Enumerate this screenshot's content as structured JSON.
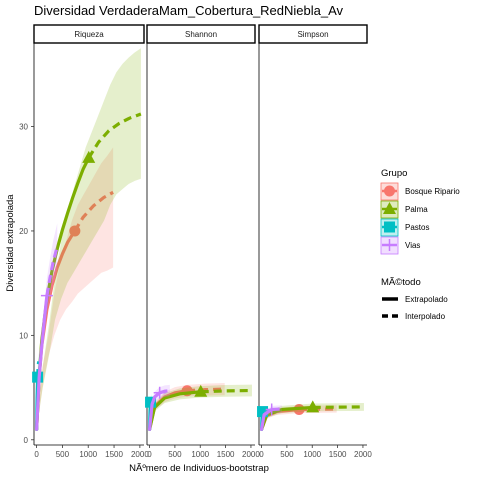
{
  "chart_data": {
    "type": "line",
    "title": "Diversidad VerdaderaMam_Cobertura_RedNiebla_Av",
    "xlabel": "NÃºmero de Individuos-bootstrap",
    "ylabel": "Diversidad extrapolada",
    "ylim": [
      -0.5,
      38
    ],
    "yticks": [
      0,
      10,
      20,
      30
    ],
    "xlim": [
      -50,
      2080
    ],
    "xticks": [
      0,
      500,
      1000,
      1500,
      2000
    ],
    "grid": false,
    "legend_position": "right",
    "facets": [
      "Riqueza",
      "Shannon",
      "Simpson"
    ],
    "legend_grupo": {
      "title": "Grupo",
      "entries": [
        {
          "name": "Bosque Ripario",
          "color": "#F8766D",
          "shape": "circle"
        },
        {
          "name": "Palma",
          "color": "#7CAE00",
          "shape": "triangle"
        },
        {
          "name": "Pastos",
          "color": "#00BFC4",
          "shape": "square"
        },
        {
          "name": "Vias",
          "color": "#C77CFF",
          "shape": "plus"
        }
      ]
    },
    "legend_metodo": {
      "title": "MÃ©todo",
      "entries": [
        {
          "name": "Extrapolado",
          "linetype": "solid"
        },
        {
          "name": "Interpolado",
          "linetype": "dashed"
        }
      ]
    },
    "panels": [
      {
        "facet": "Riqueza",
        "series": [
          {
            "name": "Bosque Ripario",
            "color": "#F8766D",
            "interp": {
              "x": [
                1,
                50,
                100,
                200,
                300,
                400,
                500,
                600,
                700,
                741
              ],
              "y": [
                1,
                6,
                9,
                12.5,
                14.8,
                16.5,
                17.8,
                18.9,
                19.7,
                20
              ]
            },
            "extrap": {
              "x": [
                741,
                900,
                1100,
                1300,
                1482
              ],
              "y": [
                20,
                21.3,
                22.4,
                23.2,
                23.7
              ]
            },
            "ci_lower": [
              1,
              5,
              8,
              10,
              11.5,
              12.5,
              13.2,
              14,
              14.5,
              15,
              15.5,
              16,
              16.2,
              16.5
            ],
            "ci_upper": [
              1,
              7,
              10,
              14,
              17,
              19,
              21,
              22.5,
              23.5,
              24.5,
              25.5,
              26.5,
              27.2,
              28
            ],
            "point": {
              "x": 741,
              "y": 20
            }
          },
          {
            "name": "Palma",
            "color": "#7CAE00",
            "interp": {
              "x": [
                1,
                50,
                100,
                200,
                300,
                400,
                500,
                600,
                700,
                800,
                900,
                1010
              ],
              "y": [
                1,
                6,
                9.5,
                13.5,
                16.2,
                18.3,
                20.1,
                21.7,
                23.2,
                24.6,
                25.9,
                27
              ]
            },
            "extrap": {
              "x": [
                1010,
                1200,
                1400,
                1600,
                1800,
                2020
              ],
              "y": [
                27,
                28.5,
                29.6,
                30.3,
                30.8,
                31.2
              ]
            },
            "ci_lower": [
              1,
              5,
              8,
              11.5,
              13.5,
              15,
              16,
              17,
              18,
              19,
              20,
              21,
              22.5,
              23.5,
              24,
              24.5,
              24.8,
              25
            ],
            "ci_upper": [
              1,
              7,
              11,
              15.5,
              19,
              21.5,
              24,
              26,
              28,
              29.5,
              31,
              32.5,
              34,
              35.2,
              36,
              36.6,
              37.1,
              37.5
            ],
            "point": {
              "x": 1010,
              "y": 27
            }
          },
          {
            "name": "Pastos",
            "color": "#00BFC4",
            "interp": {
              "x": [
                1,
                10,
                20
              ],
              "y": [
                1,
                4,
                6
              ]
            },
            "extrap": {
              "x": [
                20,
                30,
                40
              ],
              "y": [
                6,
                7,
                7.5
              ]
            },
            "point": {
              "x": 20,
              "y": 6
            }
          },
          {
            "name": "Vias",
            "color": "#C77CFF",
            "interp": {
              "x": [
                1,
                50,
                100,
                150,
                200
              ],
              "y": [
                1,
                6,
                9,
                11.5,
                13.8
              ]
            },
            "extrap": {
              "x": [
                200,
                260,
                320,
                400
              ],
              "y": [
                13.8,
                15.5,
                17,
                18.5
              ]
            },
            "point": {
              "x": 200,
              "y": 13.8
            }
          }
        ]
      },
      {
        "facet": "Shannon",
        "series": [
          {
            "name": "Bosque Ripario",
            "color": "#F8766D",
            "interp": {
              "x": [
                1,
                100,
                300,
                500,
                741
              ],
              "y": [
                1,
                3.2,
                4.1,
                4.5,
                4.7
              ]
            },
            "extrap": {
              "x": [
                741,
                1100,
                1482
              ],
              "y": [
                4.7,
                4.8,
                4.85
              ]
            },
            "point": {
              "x": 741,
              "y": 4.7
            }
          },
          {
            "name": "Palma",
            "color": "#7CAE00",
            "interp": {
              "x": [
                1,
                100,
                300,
                600,
                1010
              ],
              "y": [
                1,
                3.1,
                4.0,
                4.4,
                4.6
              ]
            },
            "extrap": {
              "x": [
                1010,
                1500,
                2020
              ],
              "y": [
                4.6,
                4.68,
                4.72
              ]
            },
            "point": {
              "x": 1010,
              "y": 4.6
            }
          },
          {
            "name": "Pastos",
            "color": "#00BFC4",
            "interp": {
              "x": [
                1,
                10,
                20
              ],
              "y": [
                1,
                2.8,
                3.6
              ]
            },
            "extrap": {
              "x": [
                20,
                40
              ],
              "y": [
                3.6,
                3.9
              ]
            },
            "point": {
              "x": 20,
              "y": 3.6
            }
          },
          {
            "name": "Vias",
            "color": "#C77CFF",
            "interp": {
              "x": [
                1,
                50,
                100,
                200
              ],
              "y": [
                1,
                3.4,
                4.1,
                4.5
              ]
            },
            "extrap": {
              "x": [
                200,
                300,
                400
              ],
              "y": [
                4.5,
                4.65,
                4.7
              ]
            },
            "point": {
              "x": 200,
              "y": 4.5
            }
          }
        ]
      },
      {
        "facet": "Simpson",
        "series": [
          {
            "name": "Bosque Ripario",
            "color": "#F8766D",
            "interp": {
              "x": [
                1,
                100,
                300,
                741
              ],
              "y": [
                1,
                2.3,
                2.7,
                2.9
              ]
            },
            "extrap": {
              "x": [
                741,
                1482
              ],
              "y": [
                2.9,
                2.95
              ]
            },
            "point": {
              "x": 741,
              "y": 2.9
            }
          },
          {
            "name": "Palma",
            "color": "#7CAE00",
            "interp": {
              "x": [
                1,
                100,
                400,
                1010
              ],
              "y": [
                1,
                2.4,
                2.9,
                3.1
              ]
            },
            "extrap": {
              "x": [
                1010,
                2020
              ],
              "y": [
                3.1,
                3.15
              ]
            },
            "point": {
              "x": 1010,
              "y": 3.1
            }
          },
          {
            "name": "Pastos",
            "color": "#00BFC4",
            "interp": {
              "x": [
                1,
                10,
                20
              ],
              "y": [
                1,
                2.2,
                2.7
              ]
            },
            "extrap": {
              "x": [
                20,
                40
              ],
              "y": [
                2.7,
                2.8
              ]
            },
            "point": {
              "x": 20,
              "y": 2.7
            }
          },
          {
            "name": "Vias",
            "color": "#C77CFF",
            "interp": {
              "x": [
                1,
                50,
                200
              ],
              "y": [
                1,
                2.4,
                2.9
              ]
            },
            "extrap": {
              "x": [
                200,
                400
              ],
              "y": [
                2.9,
                2.95
              ]
            },
            "point": {
              "x": 200,
              "y": 2.9
            }
          }
        ]
      }
    ]
  }
}
